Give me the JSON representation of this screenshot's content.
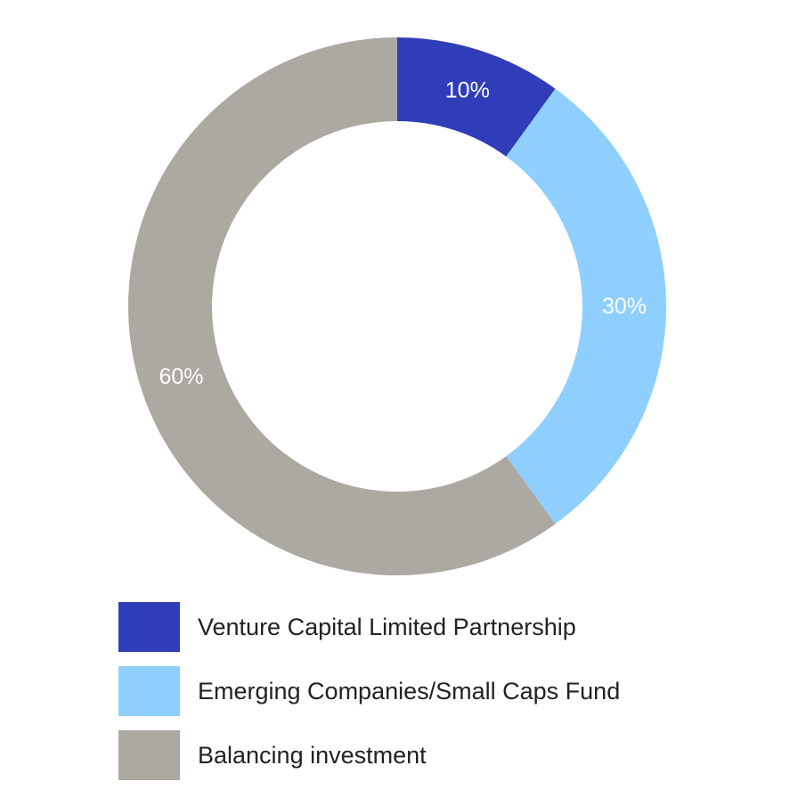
{
  "chart_data": {
    "type": "pie",
    "donut": true,
    "categories": [
      "Venture Capital Limited Partnership",
      "Emerging Companies/Small Caps Fund",
      "Balancing investment"
    ],
    "values": [
      10,
      30,
      60
    ],
    "labels": [
      "10%",
      "30%",
      "60%"
    ],
    "colors": [
      "#2f3db8",
      "#8ecfff",
      "#aca8a2"
    ],
    "label_color": "#ffffff",
    "legend_position": "bottom",
    "start_angle_deg": 0,
    "direction": "clockwise",
    "title": "",
    "xlabel": "",
    "ylabel": ""
  },
  "legend": {
    "items": [
      {
        "label": "Venture Capital Limited Partnership",
        "color": "#2f3db8"
      },
      {
        "label": "Emerging Companies/Small Caps Fund",
        "color": "#8ecfff"
      },
      {
        "label": "Balancing investment",
        "color": "#aca8a2"
      }
    ]
  }
}
